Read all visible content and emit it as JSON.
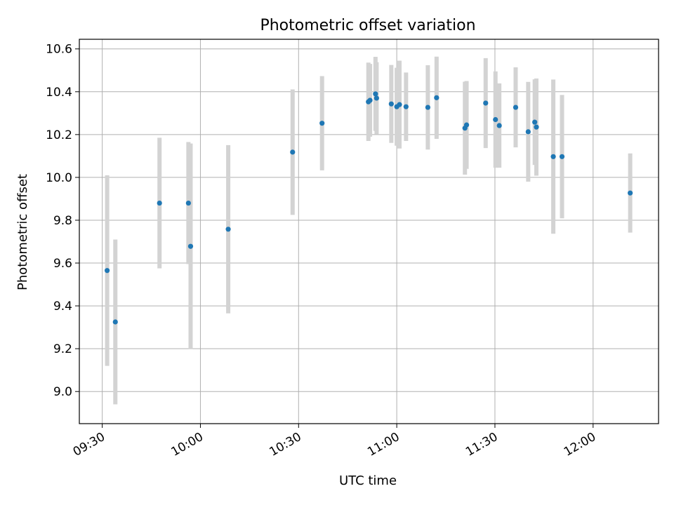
{
  "chart_data": {
    "type": "scatter",
    "title": "Photometric offset variation",
    "xlabel": "UTC time",
    "ylabel": "Photometric offset",
    "xlim": [
      "09:23",
      "12:20"
    ],
    "ylim": [
      8.85,
      10.645
    ],
    "grid": true,
    "x_ticks": [
      "09:30",
      "10:00",
      "10:30",
      "11:00",
      "11:30",
      "12:00"
    ],
    "y_ticks": [
      "9.0",
      "9.2",
      "9.4",
      "9.6",
      "9.8",
      "10.0",
      "10.2",
      "10.4",
      "10.6"
    ],
    "colors": {
      "points": "#1f77b4",
      "errorbars": "#d3d3d3",
      "grid": "#b0b0b0"
    },
    "points": [
      {
        "x": "09:31:30",
        "y": 9.565,
        "err": 0.445
      },
      {
        "x": "09:34:00",
        "y": 9.325,
        "err": 0.385
      },
      {
        "x": "09:47:30",
        "y": 9.88,
        "err": 0.305
      },
      {
        "x": "09:56:20",
        "y": 9.88,
        "err": 0.285
      },
      {
        "x": "09:57:00",
        "y": 9.678,
        "err": 0.48
      },
      {
        "x": "10:08:30",
        "y": 9.758,
        "err": 0.393
      },
      {
        "x": "10:28:10",
        "y": 10.118,
        "err": 0.293
      },
      {
        "x": "10:37:10",
        "y": 10.253,
        "err": 0.22
      },
      {
        "x": "10:51:20",
        "y": 10.353,
        "err": 0.183
      },
      {
        "x": "10:51:50",
        "y": 10.36,
        "err": 0.17
      },
      {
        "x": "10:53:30",
        "y": 10.39,
        "err": 0.173
      },
      {
        "x": "10:53:50",
        "y": 10.37,
        "err": 0.168
      },
      {
        "x": "10:58:20",
        "y": 10.343,
        "err": 0.182
      },
      {
        "x": "11:00:00",
        "y": 10.33,
        "err": 0.182
      },
      {
        "x": "11:00:50",
        "y": 10.34,
        "err": 0.205
      },
      {
        "x": "11:02:50",
        "y": 10.33,
        "err": 0.16
      },
      {
        "x": "11:09:30",
        "y": 10.327,
        "err": 0.197
      },
      {
        "x": "11:12:10",
        "y": 10.372,
        "err": 0.192
      },
      {
        "x": "11:20:50",
        "y": 10.23,
        "err": 0.217
      },
      {
        "x": "11:21:20",
        "y": 10.245,
        "err": 0.205
      },
      {
        "x": "11:27:10",
        "y": 10.347,
        "err": 0.21
      },
      {
        "x": "11:30:10",
        "y": 10.27,
        "err": 0.225
      },
      {
        "x": "11:31:20",
        "y": 10.242,
        "err": 0.197
      },
      {
        "x": "11:36:20",
        "y": 10.327,
        "err": 0.187
      },
      {
        "x": "11:40:10",
        "y": 10.213,
        "err": 0.233
      },
      {
        "x": "11:42:10",
        "y": 10.258,
        "err": 0.2
      },
      {
        "x": "11:42:40",
        "y": 10.235,
        "err": 0.227
      },
      {
        "x": "11:47:50",
        "y": 10.097,
        "err": 0.36
      },
      {
        "x": "11:50:30",
        "y": 10.097,
        "err": 0.288
      },
      {
        "x": "12:11:20",
        "y": 9.927,
        "err": 0.185
      }
    ]
  }
}
